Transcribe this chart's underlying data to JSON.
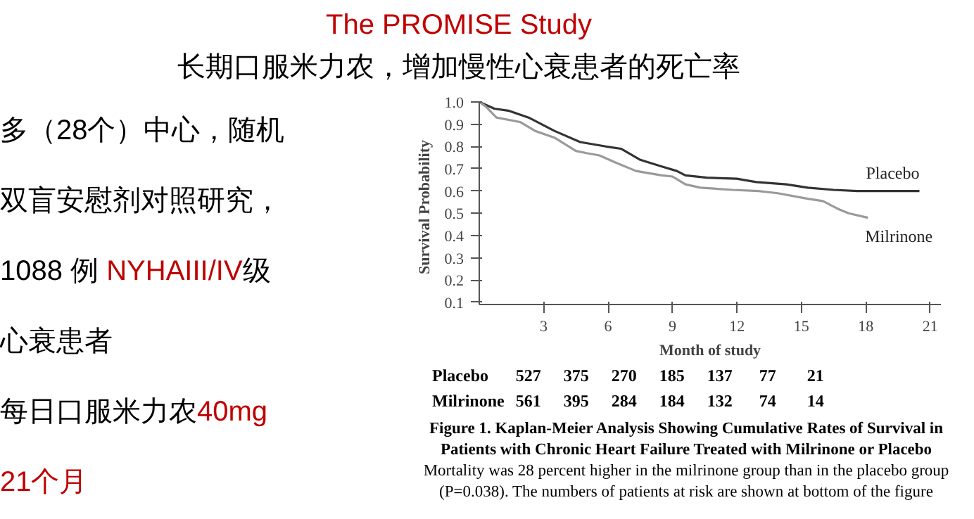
{
  "chart_data": {
    "type": "line",
    "title": "The PROMISE Study",
    "subtitle": "长期口服米力农，增加慢性心衰患者的死亡率",
    "xlabel": "Month of study",
    "ylabel": "Survival   Probability",
    "xlim": [
      0,
      21.5
    ],
    "xticks": [
      3,
      6,
      9,
      12,
      15,
      18,
      21
    ],
    "ylim": [
      0.09,
      1.0
    ],
    "yticks": [
      0.1,
      0.2,
      0.3,
      0.4,
      0.5,
      0.6,
      0.7,
      0.8,
      0.9,
      {
        "value": 1.0,
        "label": "1.0"
      }
    ],
    "grid": false,
    "marker": "none",
    "line_style": "solid",
    "series": [
      {
        "name": "Placebo",
        "color": "#333333",
        "x": [
          0,
          0.7,
          1.4,
          2.3,
          3.5,
          4.7,
          5.9,
          6.6,
          7.5,
          8.5,
          9.2,
          9.6,
          10.6,
          12,
          12.9,
          14.3,
          15.3,
          16.5,
          17.6,
          20.5
        ],
        "values": [
          1.0,
          0.97,
          0.96,
          0.93,
          0.87,
          0.82,
          0.8,
          0.79,
          0.74,
          0.71,
          0.69,
          0.67,
          0.66,
          0.655,
          0.64,
          0.63,
          0.615,
          0.605,
          0.6,
          0.6
        ]
      },
      {
        "name": "Milrinone",
        "color": "#9a9a9a",
        "x": [
          0,
          0.3,
          0.8,
          1.9,
          2.6,
          3.5,
          4.5,
          5,
          5.6,
          6.3,
          7.3,
          8.5,
          9,
          9.6,
          10.3,
          11.8,
          13,
          13.9,
          15.3,
          16,
          16.7,
          17.2,
          18.1
        ],
        "values": [
          1.0,
          0.98,
          0.93,
          0.91,
          0.87,
          0.84,
          0.78,
          0.77,
          0.76,
          0.73,
          0.69,
          0.67,
          0.665,
          0.63,
          0.615,
          0.605,
          0.6,
          0.59,
          0.565,
          0.555,
          0.52,
          0.5,
          0.48
        ]
      }
    ],
    "annotations": [
      "多（28个）中心，随机",
      "双盲安慰剂对照研究，",
      "1088 例 ",
      "NYHAIII/IV",
      "级",
      "心衰患者",
      "每日口服米力农",
      "40mg",
      "21个月",
      "Placebo 527 375 270 185 137 77 21",
      "Milrinone 561 395 284 184 132 74 14",
      "Figure 1. Kaplan-Meier Analysis Showing Cumulative Rates of Survival in Patients with Chronic Heart Failure Treated with Milrinone or Placebo",
      "Mortality was 28 percent higher in the milrinone group than in the placebo group (P=0.038). The numbers of patients at risk are shown at bottom of the figure"
    ]
  }
}
